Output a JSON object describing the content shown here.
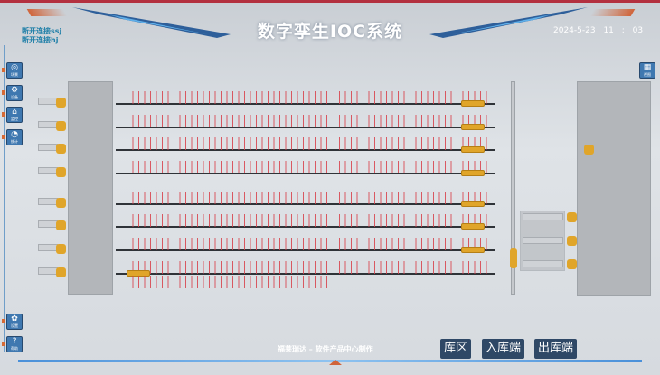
{
  "header": {
    "title": "数字孪生IOC系统",
    "datetime": "2024-5-23    11 : 03"
  },
  "connections": [
    "断开连接ssj",
    "断开连接hj"
  ],
  "left_toolbar": [
    {
      "icon": "scene-icon",
      "label": "场景"
    },
    {
      "icon": "robot-arm-icon",
      "label": "设备"
    },
    {
      "icon": "house-icon",
      "label": "监控"
    },
    {
      "icon": "pie-chart-icon",
      "label": "统计"
    }
  ],
  "left_bottom_toolbar": [
    {
      "icon": "gear-icon",
      "label": "设置"
    },
    {
      "icon": "help-icon",
      "label": "帮助"
    }
  ],
  "right_toolbar": [
    {
      "icon": "building-icon",
      "label": "视图"
    }
  ],
  "footer": {
    "credit": "福莱瑞达 – 软件产品中心制作"
  },
  "nav_buttons": [
    {
      "label": "库区"
    },
    {
      "label": "入库端"
    },
    {
      "label": "出库端"
    }
  ],
  "colors": {
    "accent": "#3f78b0",
    "rack": "#d8404a",
    "shuttle": "#e0a52a",
    "topbar": "#b3303f"
  }
}
